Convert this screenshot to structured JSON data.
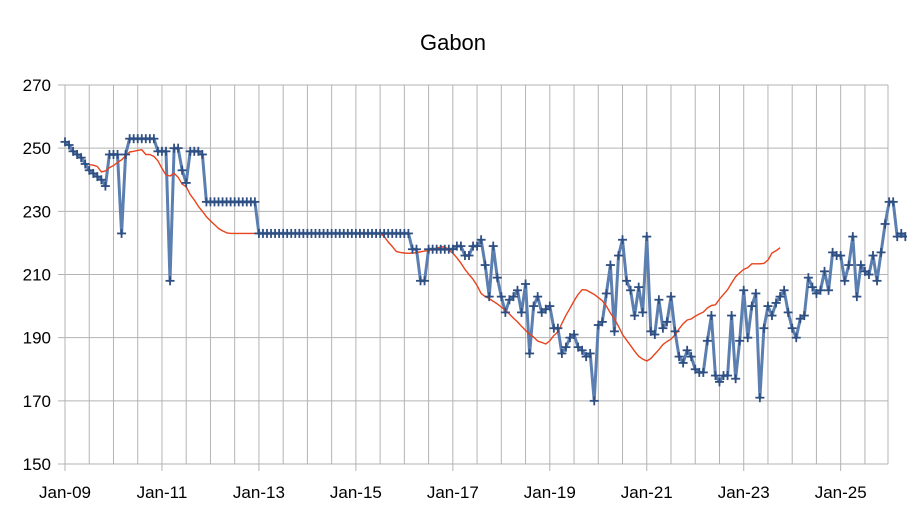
{
  "chart_data": {
    "type": "line",
    "title": "Gabon",
    "xlabel": "",
    "ylabel": "",
    "ylim": [
      150,
      270
    ],
    "y_ticks": [
      150,
      170,
      190,
      210,
      230,
      250,
      270
    ],
    "x_tick_labels": [
      "Jan-09",
      "Jan-11",
      "Jan-13",
      "Jan-15",
      "Jan-17",
      "Jan-19",
      "Jan-21",
      "Jan-23",
      "Jan-25"
    ],
    "x_start": "2009-01",
    "grid": true,
    "legend": "none",
    "colors": {
      "monthly": "#5b7fb0",
      "average": "#e8431c",
      "grid": "#b3b3b3"
    },
    "series": [
      {
        "type": "line_with_markers",
        "marker": "plus",
        "values": [
          252,
          251,
          249,
          248,
          247,
          245,
          243,
          242,
          241,
          240,
          238,
          248,
          248,
          248,
          223,
          248,
          253,
          253,
          253,
          253,
          253,
          253,
          253,
          249,
          249,
          249,
          208,
          250,
          250,
          243,
          239,
          249,
          249,
          249,
          248,
          233,
          233,
          233,
          233,
          233,
          233,
          233,
          233,
          233,
          233,
          233,
          233,
          233,
          223,
          223,
          223,
          223,
          223,
          223,
          223,
          223,
          223,
          223,
          223,
          223,
          223,
          223,
          223,
          223,
          223,
          223,
          223,
          223,
          223,
          223,
          223,
          223,
          223,
          223,
          223,
          223,
          223,
          223,
          223,
          223,
          223,
          223,
          223,
          223,
          223,
          223,
          218,
          218,
          208,
          208,
          218,
          218,
          218,
          218,
          218,
          218,
          218,
          219,
          219,
          216,
          216,
          219,
          219,
          221,
          213,
          203,
          219,
          209,
          203,
          198,
          202,
          203,
          205,
          198,
          207,
          185,
          200,
          203,
          198,
          199,
          200,
          193,
          193,
          185,
          187,
          190,
          191,
          187,
          186,
          184,
          185,
          170,
          194,
          195,
          204,
          213,
          192,
          216,
          221,
          208,
          205,
          197,
          206,
          198,
          222,
          192,
          191,
          202,
          193,
          195,
          203,
          192,
          184,
          182,
          186,
          184,
          180,
          179,
          179,
          189,
          197,
          178,
          176,
          178,
          178,
          197,
          177,
          189,
          205,
          190,
          200,
          204,
          171,
          193,
          200,
          197,
          201,
          203,
          205,
          198,
          193,
          190,
          196,
          197,
          209,
          206,
          204,
          205,
          211,
          205,
          217,
          216,
          216,
          208,
          213,
          222,
          203,
          213,
          211,
          210,
          216,
          208,
          217,
          226,
          233,
          233,
          222,
          223,
          222
        ]
      },
      {
        "type": "line",
        "start_index": 6,
        "values": [
          244.8,
          244.6,
          244.2,
          242.5,
          242.8,
          243.8,
          244.5,
          245.5,
          246.3,
          247.6,
          248.8,
          249.0,
          249.3,
          249.5,
          248.0,
          248.0,
          247.4,
          246.0,
          243.6,
          241.5,
          241.2,
          242.0,
          240.8,
          238.6,
          237.8,
          235.3,
          233.6,
          231.6,
          230.0,
          228.3,
          227.0,
          225.8,
          224.6,
          223.8,
          223.2,
          223.0,
          223.0,
          223.0,
          223.0,
          223.0,
          223.0,
          223.0,
          223.0,
          223.0,
          223.0,
          223.0,
          223.0,
          223.0,
          223.0,
          223.0,
          223.0,
          223.0,
          223.0,
          223.0,
          223.0,
          223.0,
          223.0,
          223.0,
          223.0,
          223.0,
          223.0,
          223.0,
          223.0,
          223.0,
          223.0,
          223.0,
          223.0,
          223.0,
          223.0,
          223.0,
          223.0,
          223.0,
          223.0,
          222.0,
          220.3,
          218.9,
          217.3,
          217.0,
          216.8,
          216.7,
          216.8,
          216.9,
          217.2,
          217.4,
          217.6,
          217.9,
          218.4,
          218.7,
          218.8,
          217.7,
          216.8,
          215.3,
          213.6,
          211.6,
          210.0,
          208.5,
          206.5,
          204.0,
          203.0,
          202.4,
          201.5,
          200.7,
          199.7,
          198.6,
          197.5,
          196.2,
          195.0,
          193.6,
          192.3,
          191.1,
          190.2,
          188.9,
          188.5,
          188.0,
          189.0,
          190.7,
          191.8,
          194.5,
          197.1,
          199.3,
          201.6,
          203.7,
          205.2,
          205.1,
          204.4,
          203.7,
          202.7,
          201.7,
          200.0,
          197.8,
          195.9,
          193.6,
          191.0,
          189.2,
          187.5,
          185.7,
          184.1,
          183.2,
          182.6,
          183.4,
          184.8,
          186.2,
          187.8,
          188.8,
          189.5,
          190.9,
          192.8,
          194.4,
          195.6,
          195.9,
          196.8,
          197.5,
          198.1,
          199.4,
          200.2,
          200.4,
          202.2,
          203.7,
          205.2,
          207.3,
          209.3,
          210.5,
          211.6,
          212.2,
          213.4,
          213.4,
          213.4,
          213.5,
          214.6,
          216.8,
          217.5,
          218.5
        ]
      }
    ]
  }
}
